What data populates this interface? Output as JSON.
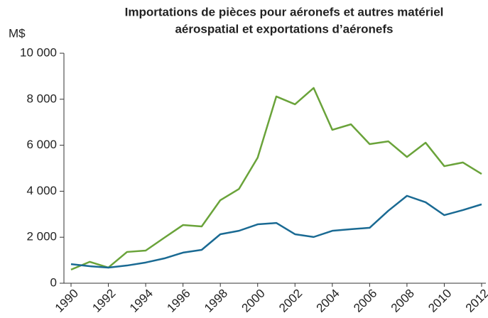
{
  "chart_data": {
    "type": "line",
    "title": [
      "Importations de pièces pour aéronefs et autres matériel",
      "aérospatial et exportations d’aéronefs"
    ],
    "y_axis_label": "M$",
    "x": [
      1990,
      1991,
      1992,
      1993,
      1994,
      1995,
      1996,
      1997,
      1998,
      1999,
      2000,
      2001,
      2002,
      2003,
      2004,
      2005,
      2006,
      2007,
      2008,
      2009,
      2010,
      2011,
      2012
    ],
    "series": [
      {
        "color": "#6aa33a",
        "values": [
          590,
          930,
          680,
          1360,
          1420,
          1980,
          2530,
          2470,
          3610,
          4100,
          5460,
          8120,
          7780,
          8490,
          6670,
          6910,
          6050,
          6170,
          5490,
          6110,
          5090,
          5250,
          4750
        ]
      },
      {
        "color": "#1a6a93",
        "values": [
          830,
          740,
          680,
          770,
          900,
          1080,
          1330,
          1450,
          2130,
          2280,
          2560,
          2620,
          2130,
          2010,
          2280,
          2350,
          2410,
          3150,
          3800,
          3520,
          2960,
          3180,
          3430
        ]
      }
    ],
    "xlim": [
      1990,
      2012
    ],
    "xticks": [
      1990,
      1992,
      1994,
      1996,
      1998,
      2000,
      2002,
      2004,
      2006,
      2008,
      2010,
      2012
    ],
    "ylim": [
      0,
      10000
    ],
    "yticks": [
      {
        "value": 0,
        "label": "0"
      },
      {
        "value": 2000,
        "label": "2 000"
      },
      {
        "value": 4000,
        "label": "4 000"
      },
      {
        "value": 6000,
        "label": "6 000"
      },
      {
        "value": 8000,
        "label": "8 000"
      },
      {
        "value": 10000,
        "label": "10 000"
      }
    ],
    "grid": false
  }
}
